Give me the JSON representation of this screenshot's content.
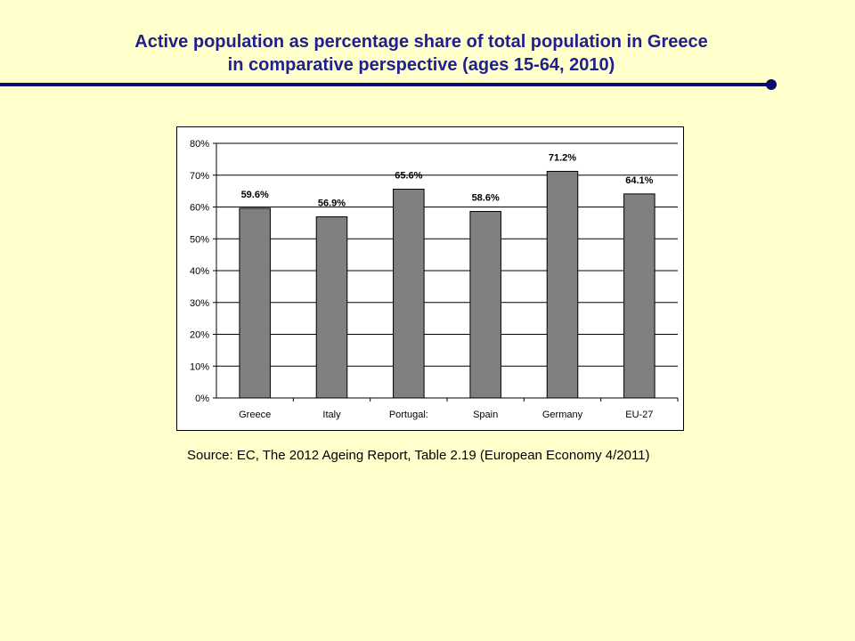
{
  "slide": {
    "title_line1": "Active population as percentage share of total population in Greece",
    "title_line2": "in comparative perspective (ages 15-64, 2010)",
    "source": "Source: EC, The 2012 Ageing Report, Table 2.19 (European Economy 4/2011)"
  },
  "colors": {
    "background": "#ffffcc",
    "title": "#1f1f8f",
    "rule": "#0b0b6b",
    "bar": "#808080"
  },
  "chart_data": {
    "type": "bar",
    "categories": [
      "Greece",
      "Italy",
      "Portugal:",
      "Spain",
      "Germany",
      "EU-27"
    ],
    "values": [
      59.6,
      56.9,
      65.6,
      58.6,
      71.2,
      64.1
    ],
    "data_labels": [
      "59.6%",
      "56.9%",
      "65.6%",
      "58.6%",
      "71.2%",
      "64.1%"
    ],
    "y_ticks": [
      "0%",
      "10%",
      "20%",
      "30%",
      "40%",
      "50%",
      "60%",
      "70%",
      "80%"
    ],
    "ylim": [
      0,
      80
    ],
    "grid": true,
    "legend": "none",
    "title": "",
    "xlabel": "",
    "ylabel": ""
  }
}
